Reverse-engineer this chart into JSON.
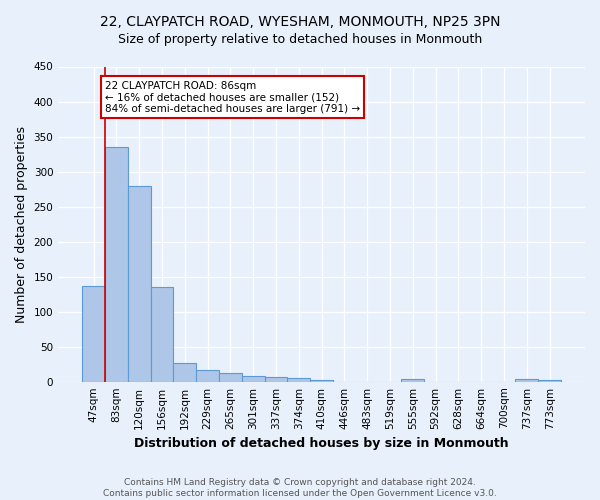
{
  "title": "22, CLAYPATCH ROAD, WYESHAM, MONMOUTH, NP25 3PN",
  "subtitle": "Size of property relative to detached houses in Monmouth",
  "xlabel": "Distribution of detached houses by size in Monmouth",
  "ylabel": "Number of detached properties",
  "footer_line1": "Contains HM Land Registry data © Crown copyright and database right 2024.",
  "footer_line2": "Contains public sector information licensed under the Open Government Licence v3.0.",
  "categories": [
    "47sqm",
    "83sqm",
    "120sqm",
    "156sqm",
    "192sqm",
    "229sqm",
    "265sqm",
    "301sqm",
    "337sqm",
    "374sqm",
    "410sqm",
    "446sqm",
    "483sqm",
    "519sqm",
    "555sqm",
    "592sqm",
    "628sqm",
    "664sqm",
    "700sqm",
    "737sqm",
    "773sqm"
  ],
  "values": [
    136,
    335,
    280,
    135,
    27,
    16,
    13,
    8,
    7,
    5,
    3,
    0,
    0,
    0,
    4,
    0,
    0,
    0,
    0,
    4,
    3
  ],
  "bar_color": "#aec6e8",
  "bar_edge_color": "#5b9bd5",
  "background_color": "#e8f0fb",
  "grid_color": "#ffffff",
  "vline_x": 0.5,
  "vline_color": "#cc0000",
  "annotation_text": "22 CLAYPATCH ROAD: 86sqm\n← 16% of detached houses are smaller (152)\n84% of semi-detached houses are larger (791) →",
  "annotation_box_color": "#ffffff",
  "annotation_box_edge_color": "#cc0000",
  "ylim": [
    0,
    450
  ],
  "yticks": [
    0,
    50,
    100,
    150,
    200,
    250,
    300,
    350,
    400,
    450
  ],
  "title_fontsize": 10,
  "subtitle_fontsize": 9,
  "ylabel_fontsize": 9,
  "xlabel_fontsize": 9,
  "annotation_fontsize": 7.5,
  "tick_fontsize": 7.5,
  "footer_fontsize": 6.5
}
